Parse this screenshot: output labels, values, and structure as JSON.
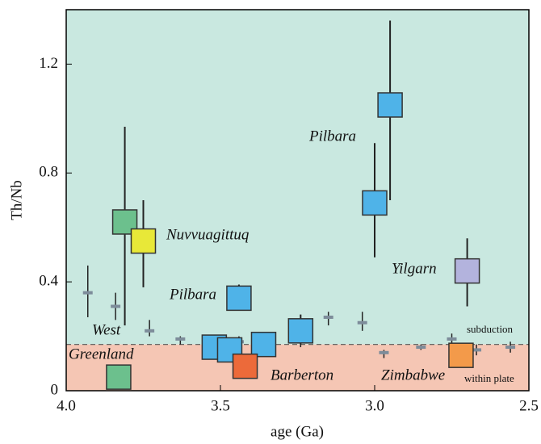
{
  "chart_data": {
    "type": "scatter",
    "x_label": "age (Ga)",
    "y_label": "Th/Nb",
    "xlim": [
      4.0,
      2.5
    ],
    "ylim": [
      0,
      1.4
    ],
    "xticks": [
      {
        "value": 4.0,
        "label": "4.0"
      },
      3.5,
      {
        "value": 3.0,
        "label": "3.0"
      },
      2.5
    ],
    "yticks": [
      0,
      0.4,
      0.8,
      1.2
    ],
    "boundary": 0.17,
    "upper_color": "#c9e8e0",
    "lower_color": "#f5c6b4",
    "boxes": {
      "x": [
        3.83,
        3.81,
        3.75,
        3.44,
        3.52,
        3.47,
        3.36,
        3.24,
        3.42,
        2.95,
        3.0,
        2.7,
        2.72
      ],
      "values": [
        0.05,
        0.62,
        0.55,
        0.34,
        0.16,
        0.15,
        0.17,
        0.22,
        0.09,
        1.05,
        0.69,
        0.44,
        0.13
      ],
      "ymin": [
        null,
        0.24,
        0.38,
        0.31,
        null,
        null,
        null,
        0.17,
        null,
        0.7,
        0.49,
        0.31,
        null
      ],
      "ymax": [
        null,
        0.97,
        0.7,
        0.39,
        null,
        null,
        null,
        0.28,
        null,
        1.36,
        0.91,
        0.56,
        null
      ],
      "colors": [
        "#6cc08d",
        "#6cc08d",
        "#e8e838",
        "#4fb3e8",
        "#4fb3e8",
        "#4fb3e8",
        "#4fb3e8",
        "#4fb3e8",
        "#ec6a3a",
        "#4fb3e8",
        "#4fb3e8",
        "#b3b3dd",
        "#f39a4a"
      ]
    },
    "crosses": {
      "color": "#7d8c9a",
      "x": [
        3.93,
        3.84,
        3.73,
        3.63,
        3.52,
        3.44,
        3.34,
        3.24,
        3.15,
        3.04,
        2.97,
        2.85,
        2.75,
        2.67,
        2.56
      ],
      "values": [
        0.36,
        0.31,
        0.22,
        0.19,
        0.19,
        0.18,
        0.18,
        0.19,
        0.27,
        0.25,
        0.14,
        0.16,
        0.19,
        0.15,
        0.16
      ],
      "ymin": [
        0.27,
        0.26,
        0.2,
        0.17,
        0.17,
        0.16,
        0.16,
        0.16,
        0.24,
        0.22,
        0.12,
        0.15,
        0.17,
        0.13,
        0.14
      ],
      "ymax": [
        0.46,
        0.36,
        0.26,
        0.2,
        0.2,
        0.2,
        0.2,
        0.24,
        0.29,
        0.29,
        0.15,
        0.17,
        0.21,
        0.17,
        0.18
      ]
    },
    "annotations": [
      "Nuvvuagittuq",
      "Pilbara",
      "Pilbara",
      "Yilgarn",
      "West",
      "Greenland",
      "Barberton",
      "Zimbabwe",
      "subduction",
      "within plate"
    ]
  }
}
